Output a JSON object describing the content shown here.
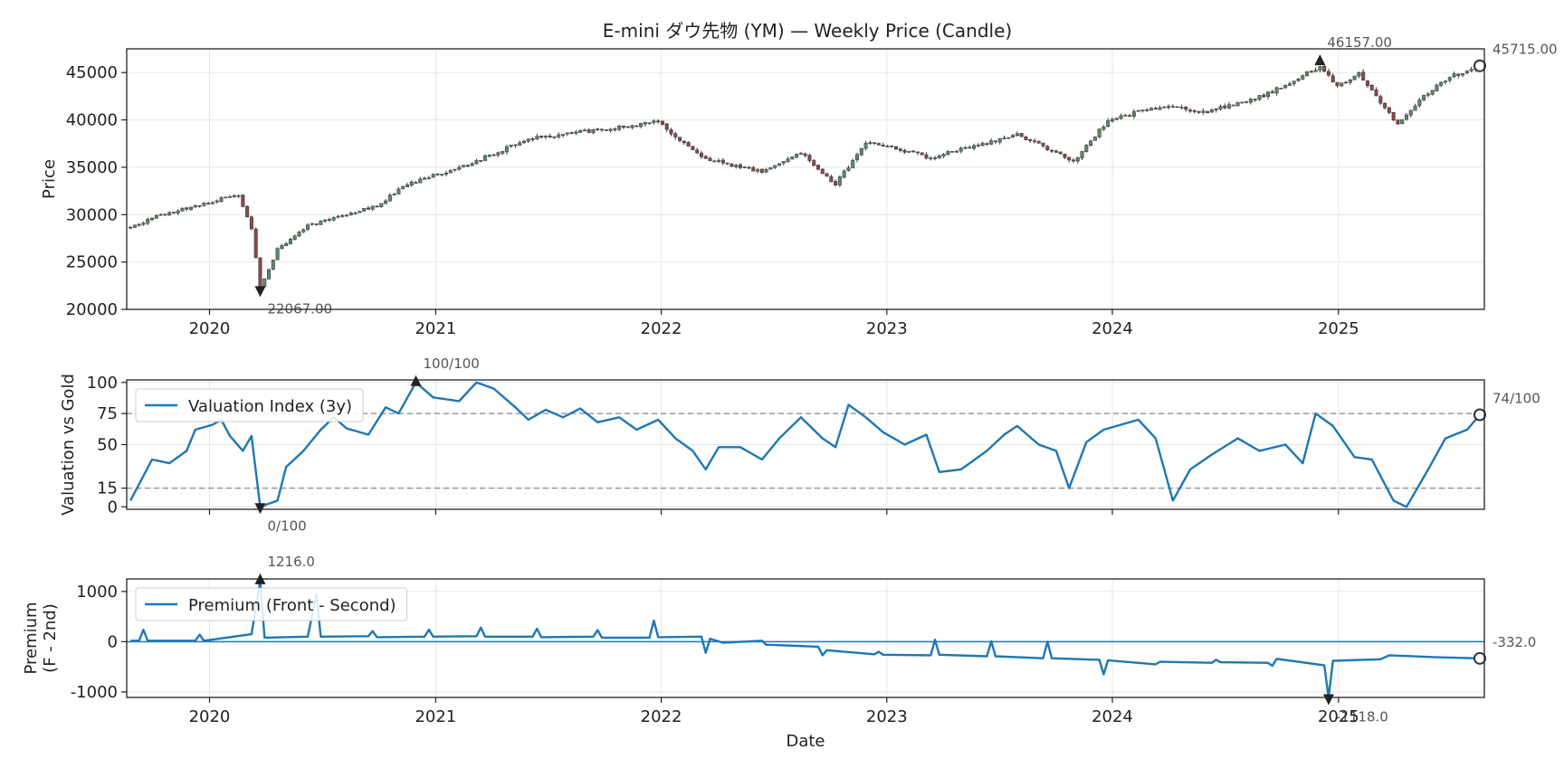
{
  "chart_data": [
    {
      "type": "candlestick",
      "title": "E-mini ダウ先物 (YM) — Weekly Price (Candle)",
      "xlabel": "",
      "ylabel": "Price",
      "xlim": [
        "2019-08-20",
        "2025-08-25"
      ],
      "ylim": [
        20000,
        47500
      ],
      "yticks": [
        20000,
        25000,
        30000,
        35000,
        40000,
        45000
      ],
      "xticks": [
        "2020",
        "2021",
        "2022",
        "2023",
        "2024",
        "2025"
      ],
      "grid": true,
      "candle_colors": {
        "up": "#5e8c6a",
        "down": "#8b4a4a",
        "wick": "#3a3a3a"
      },
      "anchors": [
        {
          "x": "2019-08-26",
          "y": 28600
        },
        {
          "x": "2019-10-01",
          "y": 29700
        },
        {
          "x": "2019-12-01",
          "y": 30800
        },
        {
          "x": "2020-02-17",
          "y": 32100
        },
        {
          "x": "2020-03-09",
          "y": 28500
        },
        {
          "x": "2020-03-23",
          "y": 22300
        },
        {
          "x": "2020-04-20",
          "y": 26300
        },
        {
          "x": "2020-06-08",
          "y": 28800
        },
        {
          "x": "2020-10-01",
          "y": 31000
        },
        {
          "x": "2020-11-09",
          "y": 33000
        },
        {
          "x": "2021-03-01",
          "y": 35500
        },
        {
          "x": "2021-06-01",
          "y": 38000
        },
        {
          "x": "2021-11-01",
          "y": 39300
        },
        {
          "x": "2021-12-27",
          "y": 39800
        },
        {
          "x": "2022-03-07",
          "y": 36000
        },
        {
          "x": "2022-06-13",
          "y": 34500
        },
        {
          "x": "2022-08-15",
          "y": 36500
        },
        {
          "x": "2022-10-10",
          "y": 33200
        },
        {
          "x": "2022-12-01",
          "y": 37800
        },
        {
          "x": "2023-03-13",
          "y": 36000
        },
        {
          "x": "2023-07-31",
          "y": 38500
        },
        {
          "x": "2023-10-30",
          "y": 35600
        },
        {
          "x": "2023-12-25",
          "y": 40000
        },
        {
          "x": "2024-03-25",
          "y": 41500
        },
        {
          "x": "2024-06-01",
          "y": 40800
        },
        {
          "x": "2024-09-01",
          "y": 42500
        },
        {
          "x": "2024-12-02",
          "y": 45600
        },
        {
          "x": "2024-12-30",
          "y": 43500
        },
        {
          "x": "2025-02-03",
          "y": 45000
        },
        {
          "x": "2025-04-07",
          "y": 39500
        },
        {
          "x": "2025-05-15",
          "y": 42300
        },
        {
          "x": "2025-06-30",
          "y": 44500
        },
        {
          "x": "2025-08-18",
          "y": 45715
        }
      ],
      "annotations": [
        {
          "label": "46157.00",
          "x": "2024-12-02",
          "y": 46157,
          "marker": "up-triangle"
        },
        {
          "label": "22067.00",
          "x": "2020-03-23",
          "y": 22067,
          "marker": "down-triangle"
        },
        {
          "label": "45715.00",
          "x": "2025-08-18",
          "y": 45715,
          "marker": "circle",
          "position": "right-edge"
        }
      ]
    },
    {
      "type": "line",
      "ylabel": "Valuation vs Gold",
      "xlim": [
        "2019-08-20",
        "2025-08-25"
      ],
      "ylim": [
        -2,
        102
      ],
      "yticks": [
        0,
        15,
        50,
        75,
        100
      ],
      "hlines": [
        15,
        75
      ],
      "grid": true,
      "legend": {
        "position": "top-left"
      },
      "series": [
        {
          "name": "Valuation Index (3y)",
          "color": "#1f77b4",
          "points": [
            {
              "x": "2019-08-26",
              "y": 5
            },
            {
              "x": "2019-09-30",
              "y": 38
            },
            {
              "x": "2019-10-28",
              "y": 35
            },
            {
              "x": "2019-11-25",
              "y": 45
            },
            {
              "x": "2019-12-09",
              "y": 62
            },
            {
              "x": "2020-01-06",
              "y": 66
            },
            {
              "x": "2020-01-20",
              "y": 70
            },
            {
              "x": "2020-02-03",
              "y": 57
            },
            {
              "x": "2020-02-24",
              "y": 45
            },
            {
              "x": "2020-03-09",
              "y": 57
            },
            {
              "x": "2020-03-23",
              "y": 0
            },
            {
              "x": "2020-04-20",
              "y": 5
            },
            {
              "x": "2020-05-04",
              "y": 32
            },
            {
              "x": "2020-06-01",
              "y": 45
            },
            {
              "x": "2020-06-29",
              "y": 62
            },
            {
              "x": "2020-07-20",
              "y": 72
            },
            {
              "x": "2020-08-10",
              "y": 63
            },
            {
              "x": "2020-09-14",
              "y": 58
            },
            {
              "x": "2020-10-12",
              "y": 80
            },
            {
              "x": "2020-11-02",
              "y": 75
            },
            {
              "x": "2020-11-30",
              "y": 100
            },
            {
              "x": "2020-12-28",
              "y": 88
            },
            {
              "x": "2021-02-08",
              "y": 85
            },
            {
              "x": "2021-03-08",
              "y": 100
            },
            {
              "x": "2021-04-05",
              "y": 95
            },
            {
              "x": "2021-05-10",
              "y": 80
            },
            {
              "x": "2021-05-31",
              "y": 70
            },
            {
              "x": "2021-06-28",
              "y": 78
            },
            {
              "x": "2021-07-26",
              "y": 72
            },
            {
              "x": "2021-08-23",
              "y": 79
            },
            {
              "x": "2021-09-20",
              "y": 68
            },
            {
              "x": "2021-10-25",
              "y": 72
            },
            {
              "x": "2021-11-22",
              "y": 62
            },
            {
              "x": "2021-12-27",
              "y": 70
            },
            {
              "x": "2022-01-24",
              "y": 55
            },
            {
              "x": "2022-02-21",
              "y": 45
            },
            {
              "x": "2022-03-14",
              "y": 30
            },
            {
              "x": "2022-04-04",
              "y": 48
            },
            {
              "x": "2022-05-09",
              "y": 48
            },
            {
              "x": "2022-06-13",
              "y": 38
            },
            {
              "x": "2022-07-11",
              "y": 55
            },
            {
              "x": "2022-08-15",
              "y": 72
            },
            {
              "x": "2022-09-19",
              "y": 55
            },
            {
              "x": "2022-10-10",
              "y": 48
            },
            {
              "x": "2022-10-31",
              "y": 82
            },
            {
              "x": "2022-11-28",
              "y": 72
            },
            {
              "x": "2022-12-26",
              "y": 60
            },
            {
              "x": "2023-01-30",
              "y": 50
            },
            {
              "x": "2023-03-06",
              "y": 58
            },
            {
              "x": "2023-03-27",
              "y": 28
            },
            {
              "x": "2023-05-01",
              "y": 30
            },
            {
              "x": "2023-06-12",
              "y": 45
            },
            {
              "x": "2023-07-10",
              "y": 58
            },
            {
              "x": "2023-07-31",
              "y": 65
            },
            {
              "x": "2023-09-04",
              "y": 50
            },
            {
              "x": "2023-10-02",
              "y": 45
            },
            {
              "x": "2023-10-23",
              "y": 15
            },
            {
              "x": "2023-11-20",
              "y": 52
            },
            {
              "x": "2023-12-18",
              "y": 62
            },
            {
              "x": "2024-02-12",
              "y": 70
            },
            {
              "x": "2024-03-11",
              "y": 55
            },
            {
              "x": "2024-04-08",
              "y": 5
            },
            {
              "x": "2024-05-06",
              "y": 30
            },
            {
              "x": "2024-06-10",
              "y": 42
            },
            {
              "x": "2024-07-22",
              "y": 55
            },
            {
              "x": "2024-08-26",
              "y": 45
            },
            {
              "x": "2024-10-07",
              "y": 50
            },
            {
              "x": "2024-11-04",
              "y": 35
            },
            {
              "x": "2024-11-25",
              "y": 75
            },
            {
              "x": "2024-12-23",
              "y": 65
            },
            {
              "x": "2025-01-27",
              "y": 40
            },
            {
              "x": "2025-02-24",
              "y": 38
            },
            {
              "x": "2025-03-31",
              "y": 5
            },
            {
              "x": "2025-04-21",
              "y": 0
            },
            {
              "x": "2025-05-26",
              "y": 30
            },
            {
              "x": "2025-06-23",
              "y": 55
            },
            {
              "x": "2025-07-28",
              "y": 62
            },
            {
              "x": "2025-08-18",
              "y": 74
            }
          ]
        }
      ],
      "annotations": [
        {
          "label": "100/100",
          "x": "2020-11-30",
          "y": 100,
          "marker": "up-triangle"
        },
        {
          "label": "0/100",
          "x": "2020-03-23",
          "y": 0,
          "marker": "down-triangle"
        },
        {
          "label": "74/100",
          "x": "2025-08-18",
          "y": 74,
          "marker": "circle",
          "position": "right-edge"
        }
      ]
    },
    {
      "type": "line",
      "xlabel": "Date",
      "ylabel": "Premium\n(F - 2nd)",
      "xlim": [
        "2019-08-20",
        "2025-08-25"
      ],
      "ylim": [
        -1110,
        1250
      ],
      "yticks": [
        -1000,
        0,
        1000
      ],
      "hlines": [
        0
      ],
      "grid": true,
      "legend": {
        "position": "top-left"
      },
      "series": [
        {
          "name": "Premium (Front - Second)",
          "color": "#1f77b4",
          "points": [
            {
              "x": "2019-08-26",
              "y": 20
            },
            {
              "x": "2019-09-09",
              "y": 20
            },
            {
              "x": "2019-09-16",
              "y": 240
            },
            {
              "x": "2019-09-23",
              "y": 20
            },
            {
              "x": "2019-12-09",
              "y": 20
            },
            {
              "x": "2019-12-16",
              "y": 140
            },
            {
              "x": "2019-12-23",
              "y": 20
            },
            {
              "x": "2020-03-09",
              "y": 150
            },
            {
              "x": "2020-03-23",
              "y": 1216
            },
            {
              "x": "2020-03-30",
              "y": 80
            },
            {
              "x": "2020-06-08",
              "y": 100
            },
            {
              "x": "2020-06-22",
              "y": 940
            },
            {
              "x": "2020-06-29",
              "y": 100
            },
            {
              "x": "2020-09-14",
              "y": 110
            },
            {
              "x": "2020-09-21",
              "y": 210
            },
            {
              "x": "2020-09-28",
              "y": 90
            },
            {
              "x": "2020-12-14",
              "y": 100
            },
            {
              "x": "2020-12-21",
              "y": 240
            },
            {
              "x": "2020-12-28",
              "y": 100
            },
            {
              "x": "2021-03-08",
              "y": 110
            },
            {
              "x": "2021-03-15",
              "y": 280
            },
            {
              "x": "2021-03-22",
              "y": 100
            },
            {
              "x": "2021-06-07",
              "y": 100
            },
            {
              "x": "2021-06-14",
              "y": 260
            },
            {
              "x": "2021-06-21",
              "y": 90
            },
            {
              "x": "2021-09-13",
              "y": 100
            },
            {
              "x": "2021-09-20",
              "y": 230
            },
            {
              "x": "2021-09-27",
              "y": 80
            },
            {
              "x": "2021-12-13",
              "y": 80
            },
            {
              "x": "2021-12-20",
              "y": 420
            },
            {
              "x": "2021-12-27",
              "y": 90
            },
            {
              "x": "2022-03-07",
              "y": 100
            },
            {
              "x": "2022-03-14",
              "y": -220
            },
            {
              "x": "2022-03-21",
              "y": 60
            },
            {
              "x": "2022-04-11",
              "y": -20
            },
            {
              "x": "2022-06-13",
              "y": 20
            },
            {
              "x": "2022-06-20",
              "y": -60
            },
            {
              "x": "2022-09-12",
              "y": -100
            },
            {
              "x": "2022-09-19",
              "y": -270
            },
            {
              "x": "2022-09-26",
              "y": -170
            },
            {
              "x": "2022-12-12",
              "y": -250
            },
            {
              "x": "2022-12-19",
              "y": -200
            },
            {
              "x": "2022-12-26",
              "y": -260
            },
            {
              "x": "2023-03-13",
              "y": -270
            },
            {
              "x": "2023-03-20",
              "y": 40
            },
            {
              "x": "2023-03-27",
              "y": -260
            },
            {
              "x": "2023-06-12",
              "y": -290
            },
            {
              "x": "2023-06-19",
              "y": 10
            },
            {
              "x": "2023-06-26",
              "y": -290
            },
            {
              "x": "2023-09-11",
              "y": -330
            },
            {
              "x": "2023-09-18",
              "y": 0
            },
            {
              "x": "2023-09-25",
              "y": -330
            },
            {
              "x": "2023-12-11",
              "y": -360
            },
            {
              "x": "2023-12-18",
              "y": -650
            },
            {
              "x": "2023-12-25",
              "y": -370
            },
            {
              "x": "2024-03-11",
              "y": -450
            },
            {
              "x": "2024-03-18",
              "y": -400
            },
            {
              "x": "2024-06-10",
              "y": -420
            },
            {
              "x": "2024-06-17",
              "y": -360
            },
            {
              "x": "2024-06-24",
              "y": -410
            },
            {
              "x": "2024-09-09",
              "y": -420
            },
            {
              "x": "2024-09-16",
              "y": -480
            },
            {
              "x": "2024-09-23",
              "y": -340
            },
            {
              "x": "2024-12-09",
              "y": -470
            },
            {
              "x": "2024-12-16",
              "y": -1118
            },
            {
              "x": "2024-12-23",
              "y": -380
            },
            {
              "x": "2025-03-10",
              "y": -350
            },
            {
              "x": "2025-03-17",
              "y": -310
            },
            {
              "x": "2025-03-24",
              "y": -270
            },
            {
              "x": "2025-06-09",
              "y": -310
            },
            {
              "x": "2025-08-18",
              "y": -332
            }
          ]
        }
      ],
      "annotations": [
        {
          "label": "1216.0",
          "x": "2020-03-23",
          "y": 1216,
          "marker": "up-triangle"
        },
        {
          "label": "-1118.0",
          "x": "2024-12-16",
          "y": -1118,
          "marker": "down-triangle"
        },
        {
          "label": "-332.0",
          "x": "2025-08-18",
          "y": -332,
          "marker": "circle",
          "position": "right-edge"
        }
      ]
    }
  ]
}
